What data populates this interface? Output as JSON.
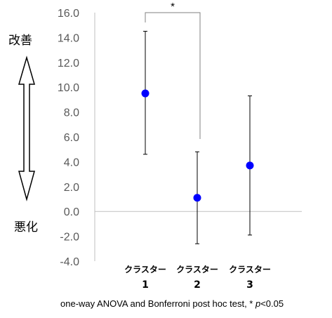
{
  "chart_data": {
    "type": "scatter",
    "categories": [
      {
        "line1": "クラスター",
        "line2": "1"
      },
      {
        "line1": "クラスター",
        "line2": "2"
      },
      {
        "line1": "クラスター",
        "line2": "3"
      }
    ],
    "means": [
      9.5,
      1.1,
      3.7
    ],
    "error_upper": [
      14.5,
      4.8,
      9.3
    ],
    "error_lower": [
      4.6,
      -2.6,
      -1.9
    ],
    "ylim": [
      -4.0,
      16.0
    ],
    "yticks": [
      "16.0",
      "14.0",
      "12.0",
      "10.0",
      "8.0",
      "6.0",
      "4.0",
      "2.0",
      "0.0",
      "-2.0",
      "-4.0"
    ],
    "ytick_values": [
      16,
      14,
      12,
      10,
      8,
      6,
      4,
      2,
      0,
      -2,
      -4
    ],
    "significance": {
      "from": 0,
      "to": 1,
      "label": "*"
    },
    "upper_label": "改善",
    "lower_label": "悪化",
    "footnote": "one-way ANOVA and Bonferroni post hoc test, *p<0.05",
    "colors": {
      "marker": "#0000ff",
      "axis": "#bfbfbf",
      "error_bar": "#000000",
      "tick_text": "#595959"
    }
  }
}
